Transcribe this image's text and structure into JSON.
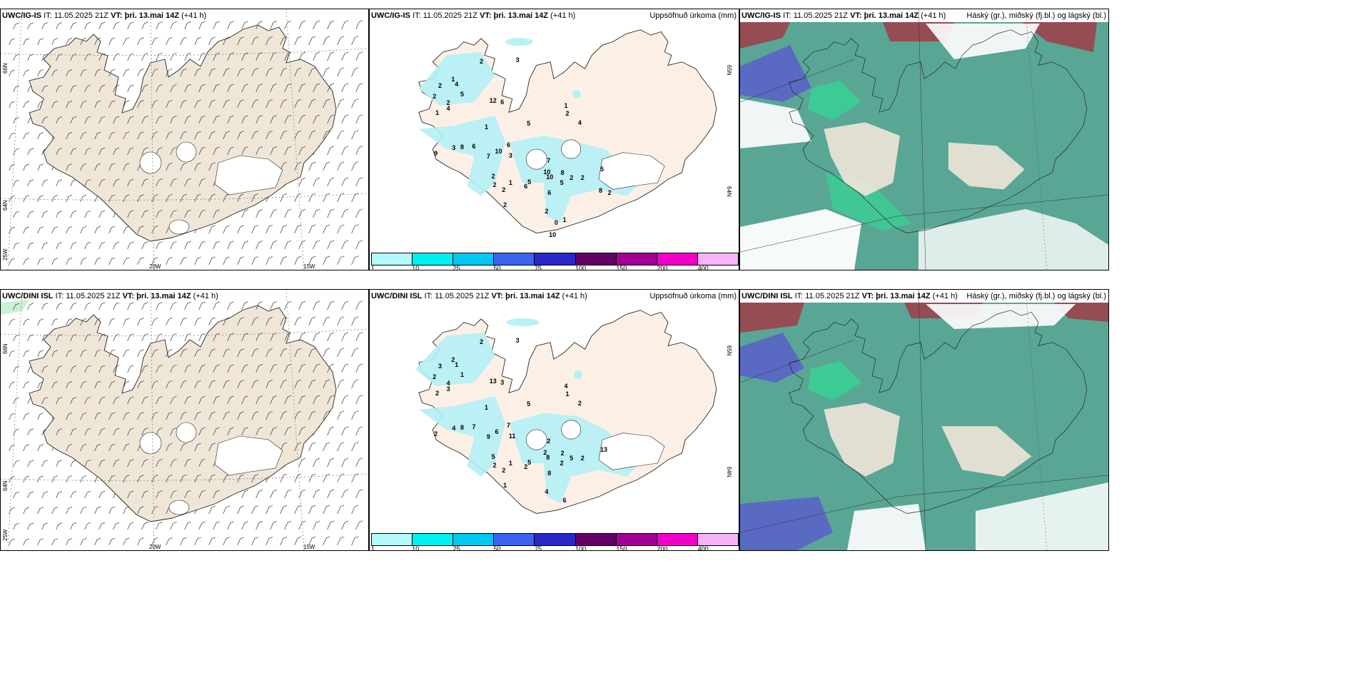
{
  "rows": [
    {
      "model": "UWC/IG-IS",
      "wind": {
        "model": "UWC/IG-IS",
        "it_label": "IT:",
        "it_value": "11.05.2025 21Z",
        "vt_label": "VT:",
        "vt_value": "þri. 13.mai 14Z",
        "lead": "(+41 h)",
        "lat_labels": [
          "66N",
          "64N"
        ],
        "lon_labels": [
          "25W",
          "20W",
          "15W"
        ]
      },
      "precip": {
        "model": "UWC/IG-IS",
        "it_label": "IT:",
        "it_value": "11.05.2025 21Z",
        "vt_label": "VT:",
        "vt_value": "þri. 13.mai 14Z",
        "lead": "(+41 h)",
        "title": "Uppsöfnuð úrkoma (mm)",
        "lat_labels": [
          "65N",
          "64N"
        ],
        "values": [
          "3",
          "2",
          "1",
          "2",
          "4",
          "5",
          "2",
          "2",
          "12",
          "6",
          "4",
          "1",
          "1",
          "1",
          "2",
          "4",
          "5",
          "6",
          "8",
          "3",
          "9",
          "7",
          "6",
          "10",
          "3",
          "2",
          "2",
          "2",
          "1",
          "2",
          "7",
          "10",
          "5",
          "10",
          "8",
          "2",
          "1",
          "5",
          "6",
          "2",
          "6",
          "2",
          "5",
          "8",
          "2",
          "0",
          "10"
        ]
      },
      "cloud": {
        "model": "UWC/IG-IS",
        "it_label": "IT:",
        "it_value": "11.05.2025 21Z",
        "vt_label": "VT:",
        "vt_value": "þri. 13.mai 14Z",
        "lead": "(+41 h)",
        "title": "Háský (gr.), miðský (fj.bl.) og lágský (bl.)"
      }
    },
    {
      "model": "UWC/DINI ISL",
      "wind": {
        "model": "UWC/DINI ISL",
        "it_label": "IT:",
        "it_value": "11.05.2025 21Z",
        "vt_label": "VT:",
        "vt_value": "þri. 13.mai 14Z",
        "lead": "(+41 h)",
        "lat_labels": [
          "66N",
          "64N"
        ],
        "lon_labels": [
          "25W",
          "20W",
          "15W"
        ]
      },
      "precip": {
        "model": "UWC/DINI ISL",
        "it_label": "IT:",
        "it_value": "11.05.2025 21Z",
        "vt_label": "VT:",
        "vt_value": "þri. 13.mai 14Z",
        "lead": "(+41 h)",
        "title": "Uppsöfnuð úrkoma (mm)",
        "lat_labels": [
          "65N",
          "64N"
        ],
        "values": [
          "3",
          "2",
          "2",
          "3",
          "1",
          "1",
          "2",
          "4",
          "13",
          "3",
          "3",
          "2",
          "1",
          "4",
          "1",
          "2",
          "5",
          "7",
          "8",
          "4",
          "2",
          "9",
          "7",
          "6",
          "11",
          "5",
          "2",
          "2",
          "1",
          "1",
          "2",
          "8",
          "5",
          "2",
          "2",
          "4",
          "6",
          "2",
          "2",
          "5",
          "8",
          "2",
          "13"
        ]
      },
      "cloud": {
        "model": "UWC/DINI ISL",
        "it_label": "IT:",
        "it_value": "11.05.2025 21Z",
        "vt_label": "VT:",
        "vt_value": "þri. 13.mai 14Z",
        "lead": "(+41 h)",
        "title": "Háský (gr.), miðský (fj.bl.) og lágský (bl.)"
      }
    }
  ],
  "colorbar": {
    "ticks": [
      "1",
      "10",
      "25",
      "50",
      "75",
      "100",
      "150",
      "200",
      "400"
    ],
    "colors": [
      "#b4fafa",
      "#00f0f0",
      "#00c8f0",
      "#3c64f0",
      "#2828c8",
      "#640064",
      "#a00096",
      "#f000c8",
      "#f5b4f5"
    ]
  },
  "colors": {
    "land": "#f0e6d8",
    "precip_land": "#fcf0e6",
    "precip_fill": "#b4f0f5",
    "cloud_high": "#a03c46",
    "cloud_mid": "#5a64c8",
    "cloud_low": "#3c9682",
    "cloud_low_edge": "#32dc96"
  }
}
